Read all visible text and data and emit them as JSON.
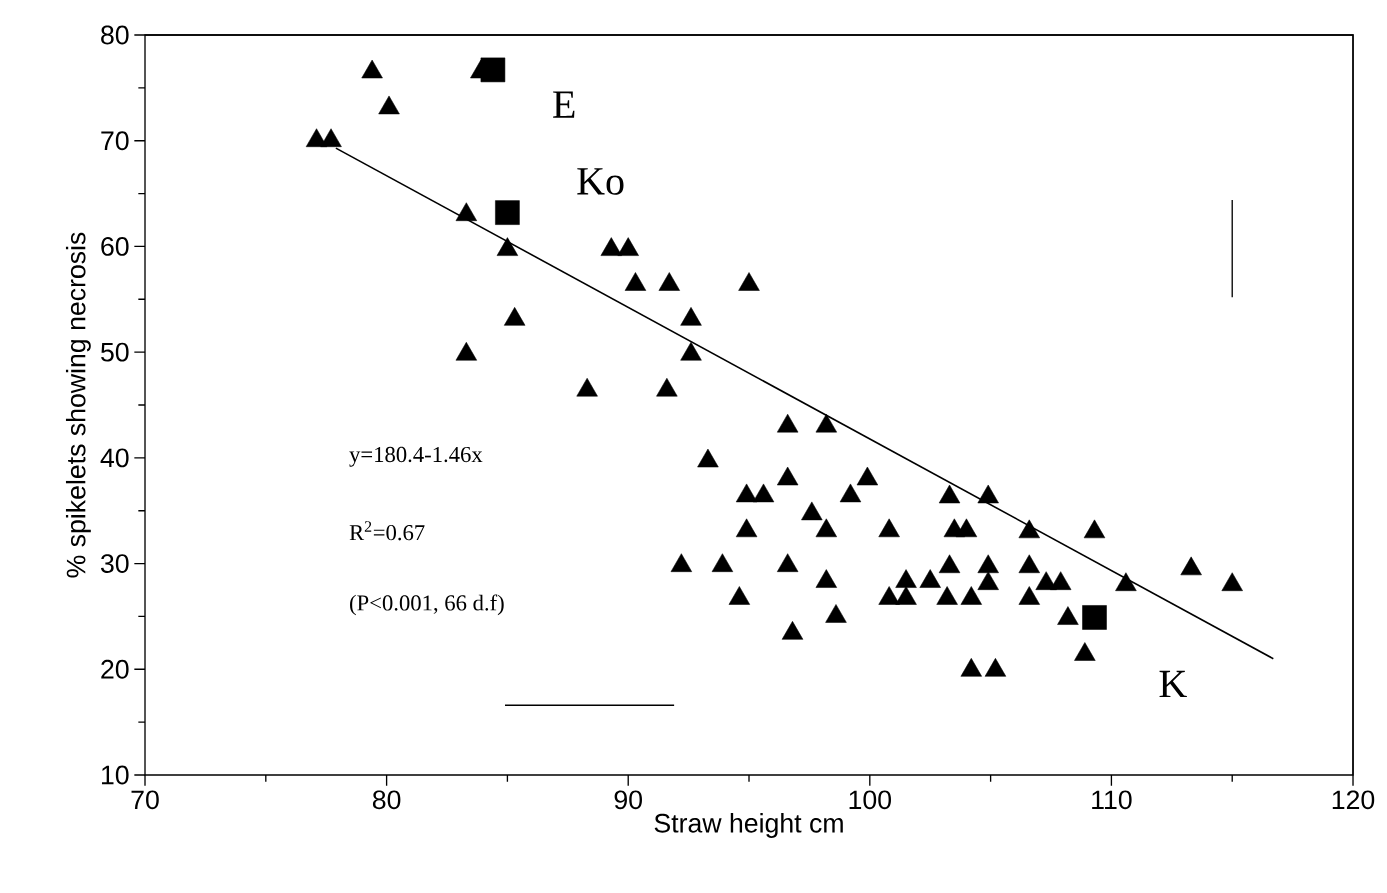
{
  "chart_data": {
    "type": "scatter",
    "xlabel": "Straw height cm",
    "ylabel": "% spikelets showing necrosis",
    "xlim": [
      70,
      120
    ],
    "xticks": [
      70,
      80,
      90,
      100,
      110,
      120
    ],
    "ylim": [
      10,
      80
    ],
    "yticks": [
      10,
      20,
      30,
      40,
      50,
      60,
      70,
      80
    ],
    "grid": false,
    "series": [
      {
        "marker": "triangle",
        "color": "#000000",
        "x": [
          77.1,
          77.7,
          79.4,
          80.1,
          83.9,
          83.3,
          85.0,
          89.3,
          90.0,
          90.3,
          91.7,
          95.0,
          85.3,
          92.6,
          83.3,
          92.6,
          88.3,
          91.6,
          96.6,
          98.2,
          93.3,
          96.6,
          99.9,
          94.9,
          95.6,
          99.2,
          103.3,
          104.9,
          97.6,
          94.9,
          98.2,
          100.8,
          103.5,
          104.0,
          106.6,
          109.3,
          92.2,
          93.9,
          96.6,
          103.3,
          104.9,
          106.6,
          113.3,
          98.2,
          101.5,
          102.5,
          104.9,
          107.3,
          107.9,
          110.6,
          115.0,
          94.6,
          100.8,
          101.5,
          103.2,
          104.2,
          106.6,
          98.6,
          108.2,
          96.8,
          108.9,
          104.2,
          105.2
        ],
        "values": [
          70,
          70,
          76.5,
          73.1,
          76.5,
          63.0,
          59.7,
          59.7,
          59.7,
          56.4,
          56.4,
          56.4,
          53.1,
          53.1,
          49.8,
          49.8,
          46.4,
          46.4,
          43.0,
          43.0,
          39.7,
          38.0,
          38.0,
          36.4,
          36.4,
          36.4,
          36.3,
          36.3,
          34.7,
          33.1,
          33.1,
          33.1,
          33.1,
          33.1,
          33.0,
          33.0,
          29.8,
          29.8,
          29.8,
          29.7,
          29.7,
          29.7,
          29.5,
          28.3,
          28.3,
          28.3,
          28.1,
          28.1,
          28.1,
          28.0,
          28.0,
          26.7,
          26.7,
          26.7,
          26.7,
          26.7,
          26.7,
          25.0,
          24.8,
          23.4,
          21.4,
          19.9,
          19.9
        ]
      },
      {
        "marker": "square",
        "color": "#000000",
        "x": [
          84.4,
          85.0,
          109.3
        ],
        "values": [
          76.7,
          63.2,
          24.9
        ]
      },
      {
        "type": "line",
        "marker": "none",
        "color": "#000000",
        "x": [
          77.9,
          116.7
        ],
        "values": [
          69.3,
          21.0
        ]
      },
      {
        "type": "line",
        "marker": "none",
        "color": "#000000",
        "x": [
          115.0,
          115.0
        ],
        "values": [
          55.2,
          64.4
        ]
      },
      {
        "type": "line",
        "marker": "none",
        "color": "#000000",
        "x": [
          84.9,
          91.9
        ],
        "values": [
          16.6,
          16.6
        ]
      }
    ],
    "annotations": [
      "E",
      "Ko",
      "K",
      "y=180.4-1.46x",
      "R$^{2}$=0.67",
      "(P<0.001, 66 d.f)"
    ]
  }
}
